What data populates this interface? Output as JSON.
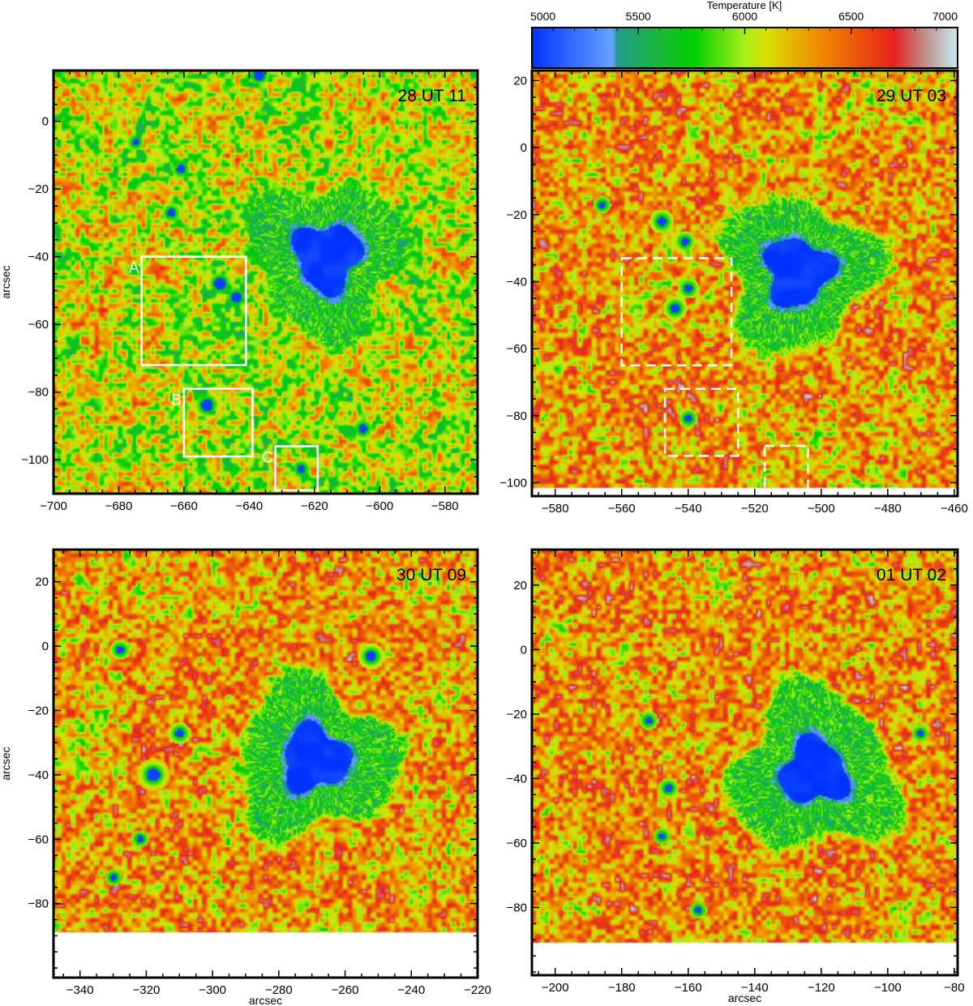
{
  "colorbar": {
    "label": "Temperature [K]",
    "range": [
      5000,
      7000
    ],
    "ticks": [
      5000,
      5500,
      6000,
      6500,
      7000
    ],
    "stops": [
      {
        "t": 5000,
        "color": "#0033ff"
      },
      {
        "t": 5380,
        "color": "#66a3ff"
      },
      {
        "t": 5400,
        "color": "#1f9a8a"
      },
      {
        "t": 5600,
        "color": "#1bb83a"
      },
      {
        "t": 5760,
        "color": "#00d000"
      },
      {
        "t": 6000,
        "color": "#a8ee1a"
      },
      {
        "t": 6100,
        "color": "#d8e000"
      },
      {
        "t": 6350,
        "color": "#f08a00"
      },
      {
        "t": 6600,
        "color": "#e84010"
      },
      {
        "t": 6700,
        "color": "#e82020"
      },
      {
        "t": 6850,
        "color": "#c09090"
      },
      {
        "t": 7000,
        "color": "#c8eef0"
      }
    ]
  },
  "chart_data": [
    {
      "type": "heatmap",
      "title": "28 UT 11",
      "xlabel": "",
      "ylabel": "arcsec",
      "xlim": [
        -700,
        -570
      ],
      "ylim": [
        -110,
        15
      ],
      "xticks": [
        -700,
        -680,
        -660,
        -640,
        -620,
        -600,
        -580
      ],
      "yticks": [
        0,
        -20,
        -40,
        -60,
        -80,
        -100
      ],
      "no_data_below": -110,
      "background_temperature": 6050,
      "sunspot": {
        "umbra_center": [
          -616,
          -40
        ],
        "umbra_radius": 10,
        "penumbra_radius": 22
      },
      "pores": [
        {
          "x": -661,
          "y": -14,
          "r": 1.2
        },
        {
          "x": -664,
          "y": -27,
          "r": 1.2
        },
        {
          "x": -675,
          "y": -6,
          "r": 1
        },
        {
          "x": -649,
          "y": -48,
          "r": 1.8
        },
        {
          "x": -644,
          "y": -52,
          "r": 1.6
        },
        {
          "x": -653,
          "y": -84,
          "r": 1.8
        },
        {
          "x": -624,
          "y": -103,
          "r": 1.2
        },
        {
          "x": -605,
          "y": -91,
          "r": 1.3
        },
        {
          "x": -637,
          "y": 14,
          "r": 1.6
        }
      ],
      "boxes": [
        {
          "label": "A",
          "x0": -673,
          "x1": -641,
          "y0": -72,
          "y1": -40,
          "style": "solid"
        },
        {
          "label": "B",
          "x0": -660,
          "x1": -639,
          "y0": -99,
          "y1": -79,
          "style": "solid"
        },
        {
          "label": "C",
          "x0": -632,
          "x1": -619,
          "y0": -109,
          "y1": -96,
          "style": "solid"
        }
      ]
    },
    {
      "type": "heatmap",
      "title": "29 UT 03",
      "xlabel": "",
      "ylabel": "",
      "xlim": [
        -587,
        -459
      ],
      "ylim": [
        -104,
        23
      ],
      "xticks": [
        -580,
        -560,
        -540,
        -520,
        -500,
        -480,
        -460
      ],
      "yticks": [
        20,
        0,
        -20,
        -40,
        -60,
        -80,
        -100
      ],
      "no_data_below": -102,
      "background_temperature": 6300,
      "sunspot": {
        "umbra_center": [
          -507,
          -37
        ],
        "umbra_radius": 10,
        "penumbra_radius": 22
      },
      "pores": [
        {
          "x": -544,
          "y": -48,
          "r": 1.4
        },
        {
          "x": -540,
          "y": -42,
          "r": 1.2
        },
        {
          "x": -548,
          "y": -22,
          "r": 1.4
        },
        {
          "x": -541,
          "y": -28,
          "r": 1.2
        },
        {
          "x": -566,
          "y": -17,
          "r": 1
        },
        {
          "x": -540,
          "y": -81,
          "r": 1.1
        }
      ],
      "boxes": [
        {
          "label": "",
          "x0": -560,
          "x1": -527,
          "y0": -65,
          "y1": -33,
          "style": "dashed"
        },
        {
          "label": "",
          "x0": -547,
          "x1": -525,
          "y0": -92,
          "y1": -72,
          "style": "dashed"
        },
        {
          "label": "",
          "x0": -517,
          "x1": -504,
          "y0": -103,
          "y1": -89,
          "style": "dashed"
        }
      ]
    },
    {
      "type": "heatmap",
      "title": "30 UT 09",
      "xlabel": "arcsec",
      "ylabel": "arcsec",
      "xlim": [
        -348,
        -220
      ],
      "ylim": [
        -103,
        30
      ],
      "xticks": [
        -340,
        -320,
        -300,
        -280,
        -260,
        -240,
        -220
      ],
      "yticks": [
        20,
        0,
        -20,
        -40,
        -60,
        -80
      ],
      "no_data_below": -89,
      "background_temperature": 6300,
      "sunspot": {
        "umbra_center": [
          -269,
          -35
        ],
        "umbra_radius": 10,
        "penumbra_radius": 23
      },
      "pores": [
        {
          "x": -252,
          "y": -3,
          "r": 1.6
        },
        {
          "x": -328,
          "y": -1,
          "r": 1.2
        },
        {
          "x": -318,
          "y": -40,
          "r": 2
        },
        {
          "x": -310,
          "y": -27,
          "r": 1.3
        },
        {
          "x": -322,
          "y": -60,
          "r": 1
        },
        {
          "x": -330,
          "y": -72,
          "r": 1
        }
      ],
      "boxes": []
    },
    {
      "type": "heatmap",
      "title": "01 UT 02",
      "xlabel": "arcsec",
      "ylabel": "",
      "xlim": [
        -207,
        -79
      ],
      "ylim": [
        -101,
        31
      ],
      "xticks": [
        -200,
        -180,
        -160,
        -140,
        -120,
        -100,
        -80
      ],
      "yticks": [
        20,
        0,
        -20,
        -40,
        -60,
        -80
      ],
      "no_data_below": -91,
      "background_temperature": 6350,
      "sunspot": {
        "umbra_center": [
          -122,
          -38
        ],
        "umbra_radius": 10,
        "penumbra_radius": 24
      },
      "pores": [
        {
          "x": -166,
          "y": -43,
          "r": 1.2
        },
        {
          "x": -172,
          "y": -22,
          "r": 1.1
        },
        {
          "x": -90,
          "y": -26,
          "r": 1
        },
        {
          "x": -157,
          "y": -81,
          "r": 1
        },
        {
          "x": -168,
          "y": -58,
          "r": 1
        }
      ],
      "boxes": []
    }
  ]
}
